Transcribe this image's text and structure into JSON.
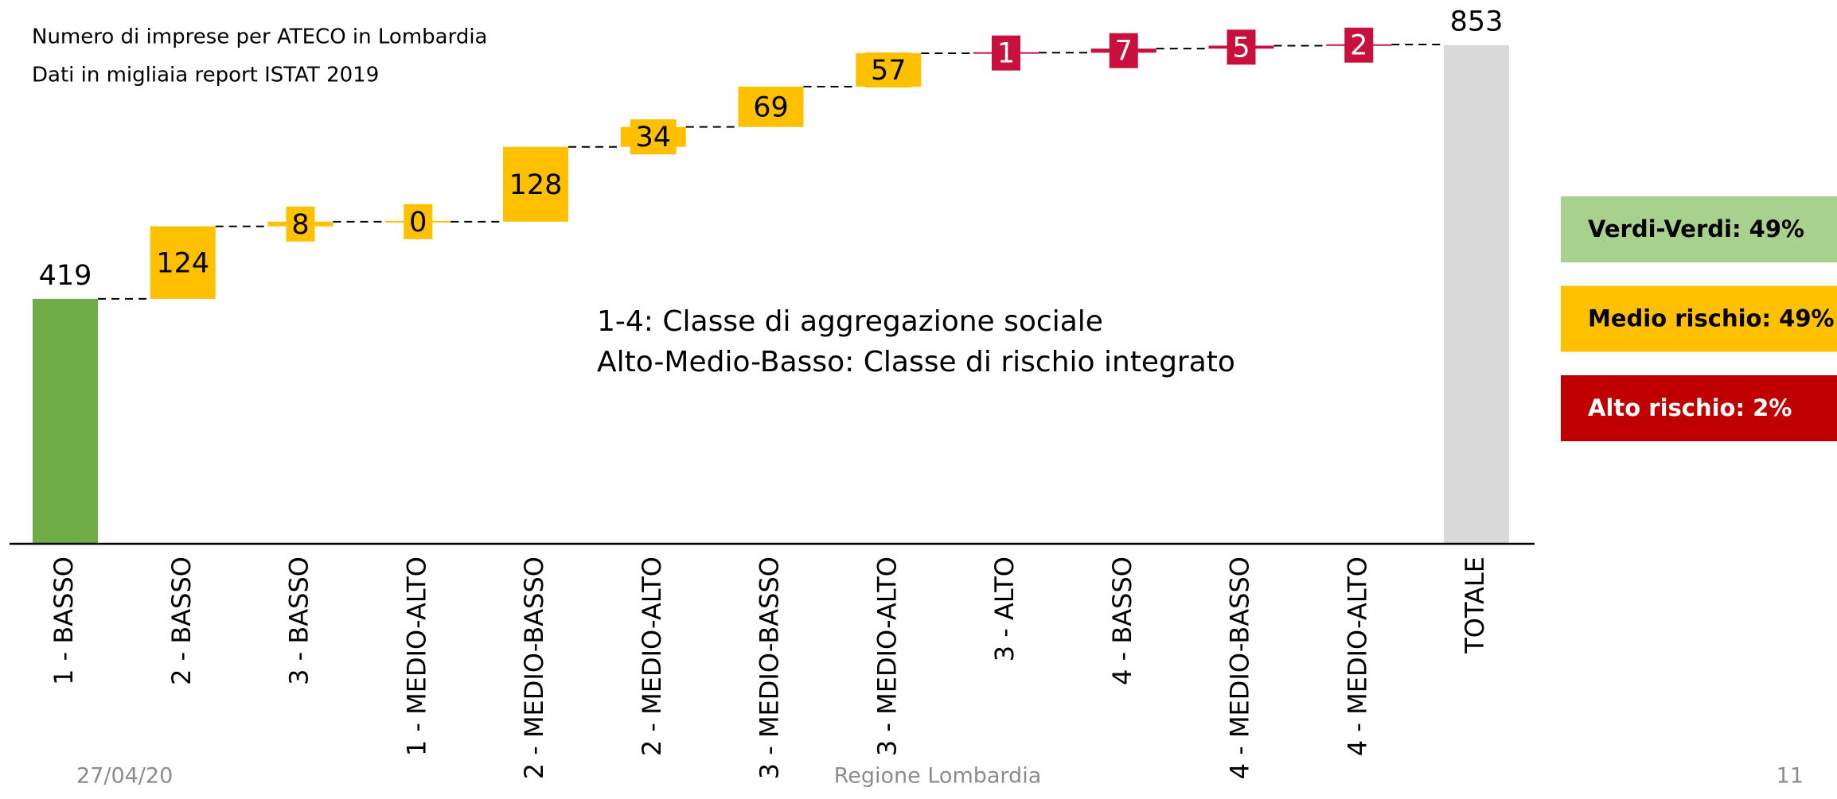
{
  "chart_data": {
    "type": "waterfall",
    "title": "Numero di imprese per ATECO in Lombardia",
    "subtitle": "Dati in migliaia report ISTAT 2019",
    "annotations": [
      "1-4: Classe di aggregazione sociale",
      "Alto-Medio-Basso: Classe di rischio integrato"
    ],
    "categories": [
      "1 - BASSO",
      "2 - BASSO",
      "3 - BASSO",
      "1 - MEDIO-ALTO",
      "2 - MEDIO-BASSO",
      "2 - MEDIO-ALTO",
      "3 - MEDIO-BASSO",
      "3 - MEDIO-ALTO",
      "3 - ALTO",
      "4 - BASSO",
      "4 - MEDIO-BASSO",
      "4 - MEDIO-ALTO",
      "TOTALE"
    ],
    "values": [
      419,
      124,
      8,
      0,
      128,
      34,
      69,
      57,
      1,
      7,
      5,
      2,
      853
    ],
    "measures": [
      "absolute",
      "relative",
      "relative",
      "relative",
      "relative",
      "relative",
      "relative",
      "relative",
      "relative",
      "relative",
      "relative",
      "relative",
      "total"
    ],
    "colors": [
      "#70ad47",
      "#ffc000",
      "#ffc000",
      "#ffc000",
      "#ffc000",
      "#ffc000",
      "#ffc000",
      "#ffc000",
      "#c8103e",
      "#c8103e",
      "#c8103e",
      "#c8103e",
      "#d9d9d9"
    ],
    "side_boxes": [
      {
        "label": "Verdi-Verdi: 49%",
        "color": "#a9d18e",
        "text_color": "#000000"
      },
      {
        "label": "Medio rischio: 49%",
        "color": "#ffc000",
        "text_color": "#000000"
      },
      {
        "label": "Alto rischio: 2%",
        "color": "#c00000",
        "text_color": "#ffffff"
      }
    ]
  },
  "footer": {
    "date": "27/04/20",
    "center": "Regione Lombardia",
    "page": "11"
  }
}
